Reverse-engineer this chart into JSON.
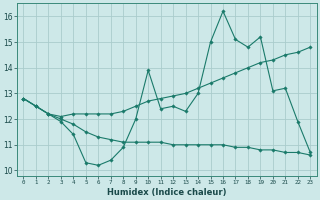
{
  "xlabel": "Humidex (Indice chaleur)",
  "bg_color": "#cde8e8",
  "line_color": "#1a7a6a",
  "grid_color": "#aacccc",
  "xlim": [
    -0.5,
    23.5
  ],
  "ylim": [
    9.8,
    16.5
  ],
  "xtick_labels": [
    "0",
    "1",
    "2",
    "3",
    "4",
    "5",
    "6",
    "7",
    "8",
    "9",
    "10",
    "11",
    "12",
    "13",
    "14",
    "15",
    "16",
    "17",
    "18",
    "19",
    "20",
    "21",
    "22",
    "23"
  ],
  "yticks": [
    10,
    11,
    12,
    13,
    14,
    15,
    16
  ],
  "series": [
    [
      12.8,
      12.5,
      12.2,
      11.9,
      11.4,
      10.3,
      10.2,
      10.4,
      10.9,
      12.0,
      13.9,
      12.4,
      12.5,
      12.3,
      13.0,
      15.0,
      16.2,
      15.1,
      14.8,
      15.2,
      13.1,
      13.2,
      11.9,
      10.7
    ],
    [
      12.8,
      12.5,
      12.2,
      12.1,
      12.2,
      12.2,
      12.2,
      12.2,
      12.3,
      12.5,
      12.7,
      12.8,
      12.9,
      13.0,
      13.2,
      13.4,
      13.6,
      13.8,
      14.0,
      14.2,
      14.3,
      14.5,
      14.6,
      14.8
    ],
    [
      12.8,
      12.5,
      12.2,
      12.0,
      11.8,
      11.5,
      11.3,
      11.2,
      11.1,
      11.1,
      11.1,
      11.1,
      11.0,
      11.0,
      11.0,
      11.0,
      11.0,
      10.9,
      10.9,
      10.8,
      10.8,
      10.7,
      10.7,
      10.6
    ]
  ]
}
